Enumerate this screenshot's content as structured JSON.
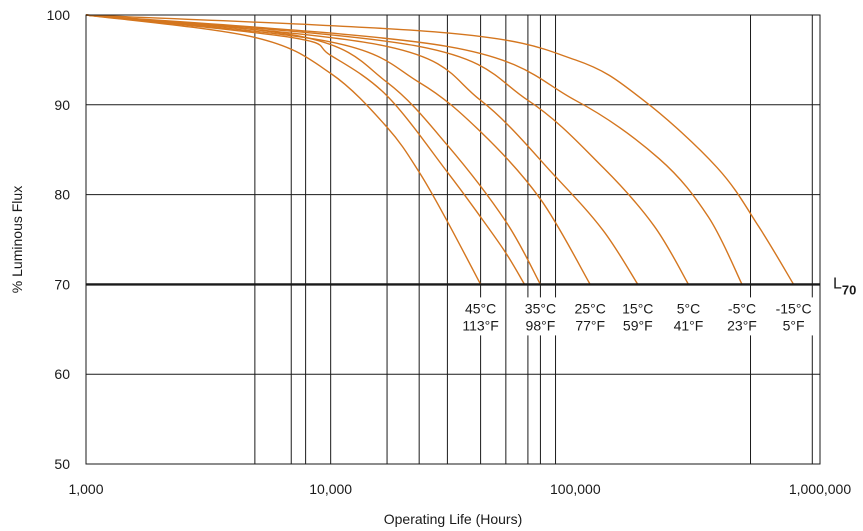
{
  "chart_data": {
    "type": "line",
    "title": "",
    "xlabel": "Operating Life (Hours)",
    "ylabel": "% Luminous Flux",
    "x_scale": "log",
    "xlim": [
      1000,
      1000000
    ],
    "ylim": [
      50,
      100
    ],
    "x_ticks": [
      1000,
      10000,
      100000,
      1000000
    ],
    "x_tick_labels": [
      "1,000",
      "10,000",
      "100,000",
      "1,000,000"
    ],
    "y_ticks": [
      50,
      60,
      70,
      80,
      90,
      100
    ],
    "y_tick_labels": [
      "50",
      "60",
      "70",
      "80",
      "90",
      "100"
    ],
    "grid": true,
    "vertical_gridlines": [
      4900,
      6900,
      7900,
      10000,
      17000,
      23000,
      30000,
      41000,
      52000,
      64000,
      72000,
      83000,
      520000,
      930000
    ],
    "reference_line": {
      "y": 70,
      "label_main": "L",
      "label_sub": "70"
    },
    "curve_color": "#d4761f",
    "series": [
      {
        "name": "45°C 113°F",
        "l70_hours": 41000,
        "points": [
          [
            1000,
            100
          ],
          [
            4900,
            97.5
          ],
          [
            10000,
            93.5
          ],
          [
            17000,
            87.5
          ],
          [
            23000,
            82.5
          ],
          [
            30000,
            77
          ],
          [
            41000,
            70
          ]
        ]
      },
      {
        "name": "",
        "l70_hours": 62000,
        "points": [
          [
            1000,
            100
          ],
          [
            6900,
            97.5
          ],
          [
            10000,
            95.5
          ],
          [
            17000,
            91
          ],
          [
            30000,
            82.5
          ],
          [
            41000,
            77.5
          ],
          [
            52000,
            73.5
          ],
          [
            62000,
            70
          ]
        ]
      },
      {
        "name": "35°C 98°F",
        "l70_hours": 72000,
        "points": [
          [
            1000,
            100
          ],
          [
            7900,
            97.5
          ],
          [
            17000,
            92.5
          ],
          [
            30000,
            85.5
          ],
          [
            52000,
            77
          ],
          [
            72000,
            70
          ]
        ]
      },
      {
        "name": "25°C 77°F",
        "l70_hours": 115000,
        "points": [
          [
            1000,
            100
          ],
          [
            10000,
            97
          ],
          [
            23000,
            92.5
          ],
          [
            41000,
            87
          ],
          [
            72000,
            79.5
          ],
          [
            115000,
            70
          ]
        ]
      },
      {
        "name": "15°C 59°F",
        "l70_hours": 180000,
        "points": [
          [
            1000,
            100
          ],
          [
            17000,
            96.5
          ],
          [
            41000,
            90.5
          ],
          [
            83000,
            82
          ],
          [
            130000,
            76
          ],
          [
            180000,
            70
          ]
        ]
      },
      {
        "name": "5°C 41°F",
        "l70_hours": 290000,
        "points": [
          [
            1000,
            100
          ],
          [
            23000,
            96.5
          ],
          [
            64000,
            90.5
          ],
          [
            130000,
            83
          ],
          [
            210000,
            76.5
          ],
          [
            290000,
            70
          ]
        ]
      },
      {
        "name": "-5°C 23°F",
        "l70_hours": 480000,
        "points": [
          [
            1000,
            100
          ],
          [
            30000,
            96.5
          ],
          [
            100000,
            90.5
          ],
          [
            220000,
            84
          ],
          [
            350000,
            77.5
          ],
          [
            480000,
            70
          ]
        ]
      },
      {
        "name": "-15°C 5°F",
        "l70_hours": 780000,
        "points": [
          [
            1000,
            100
          ],
          [
            30000,
            98
          ],
          [
            100000,
            95
          ],
          [
            190000,
            90.5
          ],
          [
            380000,
            83
          ],
          [
            560000,
            76.5
          ],
          [
            780000,
            70
          ]
        ]
      }
    ],
    "annotations": [
      {
        "celsius": "45°C",
        "fahrenheit": "113°F",
        "x": 41000
      },
      {
        "celsius": "35°C",
        "fahrenheit": "98°F",
        "x": 72000
      },
      {
        "celsius": "25°C",
        "fahrenheit": "77°F",
        "x": 115000
      },
      {
        "celsius": "15°C",
        "fahrenheit": "59°F",
        "x": 180000
      },
      {
        "celsius": "5°C",
        "fahrenheit": "41°F",
        "x": 290000
      },
      {
        "celsius": "-5°C",
        "fahrenheit": "23°F",
        "x": 480000
      },
      {
        "celsius": "-15°C",
        "fahrenheit": "5°F",
        "x": 780000
      }
    ]
  }
}
